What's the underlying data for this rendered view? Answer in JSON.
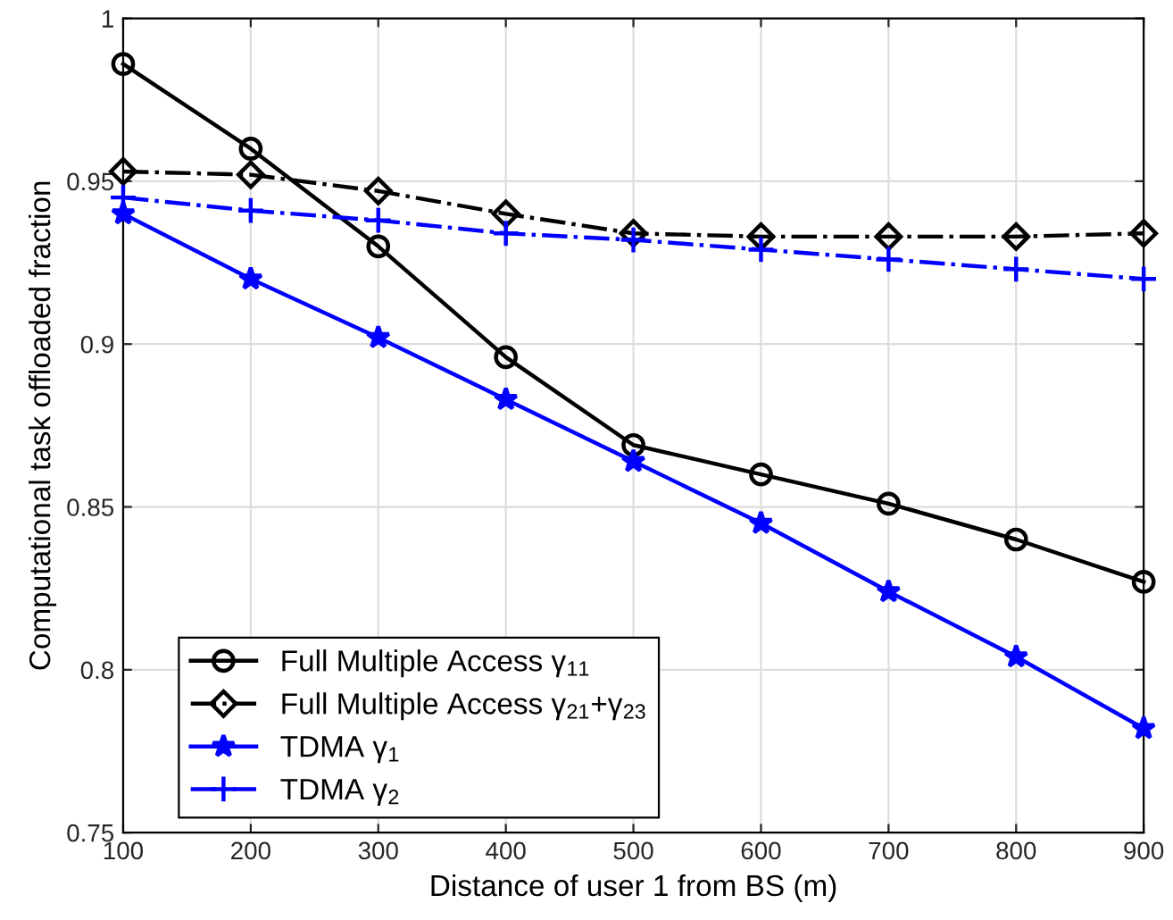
{
  "chart_data": {
    "type": "line",
    "xlabel": "Distance of user 1 from BS (m)",
    "ylabel": "Computational task offloaded fraction",
    "x": [
      100,
      200,
      300,
      400,
      500,
      600,
      700,
      800,
      900
    ],
    "series": [
      {
        "name": "Full Multiple Access γ$_{11}$",
        "color": "#000000",
        "marker": "circle",
        "line_style": "solid",
        "values": [
          0.986,
          0.96,
          0.93,
          0.896,
          0.869,
          0.86,
          0.851,
          0.84,
          0.827
        ]
      },
      {
        "name": "Full Multiple Access γ$_{21}$+γ$_{23}$",
        "color": "#000000",
        "marker": "diamond",
        "line_style": "dashdot",
        "values": [
          0.953,
          0.952,
          0.947,
          0.94,
          0.934,
          0.933,
          0.933,
          0.933,
          0.934
        ]
      },
      {
        "name": "TDMA γ$_{1}$",
        "color": "#0000ff",
        "marker": "star",
        "line_style": "solid",
        "values": [
          0.94,
          0.92,
          0.902,
          0.883,
          0.864,
          0.845,
          0.824,
          0.804,
          0.782
        ]
      },
      {
        "name": "TDMA γ$_{2}$",
        "color": "#0000ff",
        "marker": "cross",
        "line_style": "dashdot",
        "values": [
          0.945,
          0.941,
          0.938,
          0.934,
          0.932,
          0.929,
          0.926,
          0.923,
          0.92
        ]
      }
    ],
    "xlim": [
      100,
      900
    ],
    "xticks": [
      100,
      200,
      300,
      400,
      500,
      600,
      700,
      800,
      900
    ],
    "ylim": [
      0.75,
      1
    ],
    "yticks": [
      0.75,
      0.8,
      0.85,
      0.9,
      0.95,
      1
    ],
    "grid": true,
    "legend": "bottom left"
  }
}
